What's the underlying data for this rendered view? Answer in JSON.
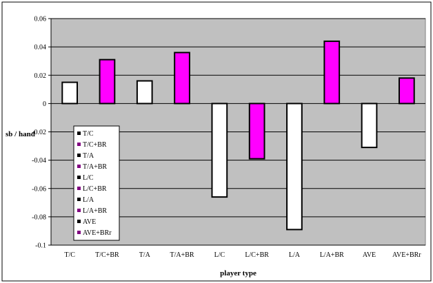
{
  "chart_data": {
    "type": "bar",
    "xlabel": "player type",
    "ylabel": "sb / hand",
    "categories": [
      "T/C",
      "T/C+BR",
      "T/A",
      "T/A+BR",
      "L/C",
      "L/C+BR",
      "L/A",
      "L/A+BR",
      "AVE",
      "AVE+BRr"
    ],
    "values": [
      0.015,
      0.031,
      0.016,
      0.036,
      -0.066,
      -0.039,
      -0.089,
      0.044,
      -0.031,
      0.018
    ],
    "bar_colors": [
      "#ffffff",
      "#ff00ff",
      "#ffffff",
      "#ff00ff",
      "#ffffff",
      "#ff00ff",
      "#ffffff",
      "#ff00ff",
      "#ffffff",
      "#ff00ff"
    ],
    "ylim": [
      -0.1,
      0.06
    ],
    "yticks": [
      0.06,
      0.04,
      0.02,
      0,
      -0.02,
      -0.04,
      -0.06,
      -0.08,
      -0.1
    ],
    "ytick_labels": [
      "0.06",
      "0.04",
      "0.02",
      "0",
      "-0.02",
      "-0.04",
      "-0.06",
      "-0.08",
      "-0.1"
    ],
    "grid": true,
    "plot_background": "#c0c0c0",
    "legend_placement": "lower-left-inside",
    "legend_entries": [
      {
        "label": "T/C",
        "color": "#000000"
      },
      {
        "label": "T/C+BR",
        "color": "#800080"
      },
      {
        "label": "T/A",
        "color": "#000000"
      },
      {
        "label": "T/A+BR",
        "color": "#800080"
      },
      {
        "label": "L/C",
        "color": "#000000"
      },
      {
        "label": "L/C+BR",
        "color": "#800080"
      },
      {
        "label": "L/A",
        "color": "#000000"
      },
      {
        "label": "L/A+BR",
        "color": "#800080"
      },
      {
        "label": "AVE",
        "color": "#000000"
      },
      {
        "label": "AVE+BRr",
        "color": "#800080"
      }
    ]
  }
}
